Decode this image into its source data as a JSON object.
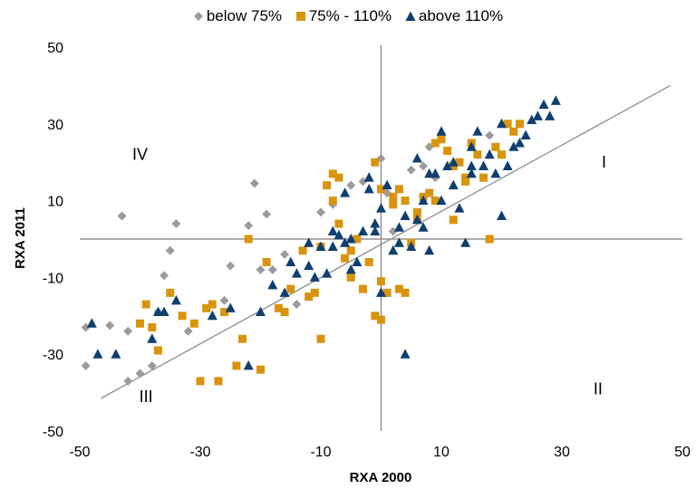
{
  "chart_data": {
    "type": "scatter",
    "xlabel": "RXA 2000",
    "ylabel": "RXA 2011",
    "xlim": [
      -50,
      50
    ],
    "ylim": [
      -50,
      50
    ],
    "x_ticks": [
      -50,
      -30,
      -10,
      10,
      30,
      50
    ],
    "y_ticks": [
      50,
      30,
      10,
      -10,
      -30,
      -50
    ],
    "legend_position": "top",
    "grid": false,
    "quadrant_labels": [
      {
        "text": "I",
        "x": 37,
        "y": 20
      },
      {
        "text": "II",
        "x": 36,
        "y": -39
      },
      {
        "text": "III",
        "x": -39,
        "y": -41
      },
      {
        "text": "IV",
        "x": -40,
        "y": 22
      }
    ],
    "trendline": {
      "x": [
        -46.5,
        48
      ],
      "y": [
        -41.5,
        40
      ],
      "color": "#999999"
    },
    "series": [
      {
        "name": "below 75%",
        "marker": "diamond",
        "color": "#9B9B9B",
        "x": [
          -43,
          -34,
          -35,
          -36,
          -37,
          -40,
          -42,
          -45,
          -49,
          -21,
          -19,
          -22,
          -25,
          -26,
          -20,
          -18,
          -16,
          -14,
          -10,
          -8,
          -5,
          -3,
          0,
          1,
          5,
          7,
          8,
          -49,
          -32,
          -38,
          -42,
          18,
          9,
          2
        ],
        "y": [
          6,
          4,
          -3,
          -9.5,
          -19,
          -35,
          -24,
          -22.5,
          -23,
          14.5,
          6.5,
          3.5,
          -7,
          -16,
          -8,
          -8,
          -4,
          -17,
          7,
          9,
          14,
          15,
          21,
          12,
          18,
          19,
          24,
          -33,
          -24,
          -33,
          -37,
          27,
          16,
          2
        ]
      },
      {
        "name": "75% - 110%",
        "marker": "square",
        "color": "#D9940E",
        "x": [
          -39,
          -37,
          -38,
          -40,
          -35,
          -33,
          -31,
          -29,
          -28,
          -27,
          -24,
          -23,
          -22,
          -19,
          -17,
          -16,
          -15,
          -13,
          -12,
          -11,
          -10,
          -9,
          -8,
          -7,
          -6,
          -5,
          -4,
          -3,
          -2,
          -1,
          0,
          1,
          2,
          3,
          4,
          5,
          6,
          7,
          8,
          9,
          10,
          11,
          12,
          13,
          14,
          15,
          16,
          17,
          18,
          19,
          20,
          21,
          22,
          23,
          -8,
          -7,
          -1,
          0,
          2,
          4,
          6,
          9,
          12,
          14,
          -30,
          -26,
          -20,
          -10,
          -5,
          0,
          3
        ],
        "y": [
          -17,
          -29,
          -23,
          -22,
          -14,
          -20,
          -22,
          -18,
          -17,
          -37,
          -33,
          -26,
          0,
          -6,
          -18,
          -19,
          -13,
          -3,
          -15,
          -14,
          -2,
          14,
          17,
          16,
          -5,
          -10,
          0,
          -13,
          -6,
          -20,
          -11,
          -14,
          9,
          13,
          10,
          -1,
          5,
          11,
          12,
          25,
          26,
          23,
          19,
          20,
          15,
          25,
          22,
          16,
          0,
          24,
          22,
          30,
          28,
          30,
          10,
          4,
          20,
          13,
          11,
          -14,
          7,
          10,
          5,
          16,
          -37,
          -19,
          -34,
          -26,
          -3,
          -21,
          -13
        ]
      },
      {
        "name": "above 110%",
        "marker": "triangle",
        "color": "#0F3F6F",
        "x": [
          -48,
          -47,
          -44,
          -38,
          -37,
          -36,
          -34,
          -28,
          -25,
          -22,
          -20,
          -18,
          -16,
          -15,
          -14,
          -12,
          -11,
          -10,
          -9,
          -8,
          -7,
          -6,
          -5,
          -4,
          -3,
          -2,
          -1,
          0,
          1,
          2,
          3,
          4,
          5,
          6,
          7,
          8,
          9,
          10,
          11,
          12,
          13,
          14,
          15,
          16,
          17,
          18,
          19,
          20,
          21,
          22,
          23,
          24,
          25,
          26,
          27,
          28,
          29,
          -6,
          -2,
          0,
          4,
          7,
          10,
          15,
          20,
          -12,
          -8,
          -5,
          -1,
          3,
          6,
          8,
          12,
          15
        ],
        "y": [
          -22,
          -30,
          -30,
          -26,
          -19,
          -19,
          -16,
          -20,
          -18,
          -33,
          -19,
          -12,
          -14,
          -6,
          -9,
          -1,
          -10,
          -2,
          -9,
          2,
          1,
          -1,
          0,
          -6,
          2,
          16,
          4,
          -14,
          14,
          -3,
          3,
          -30,
          -2,
          21,
          10,
          -3,
          17,
          28,
          19,
          14,
          8,
          -1,
          17,
          28,
          19,
          22,
          17,
          30,
          19,
          24,
          25,
          27,
          31,
          32,
          35,
          32,
          36,
          12,
          13,
          8,
          6,
          3,
          10,
          19,
          6,
          -7,
          -2,
          -8,
          2,
          -1,
          5,
          17,
          20,
          24
        ]
      }
    ]
  }
}
